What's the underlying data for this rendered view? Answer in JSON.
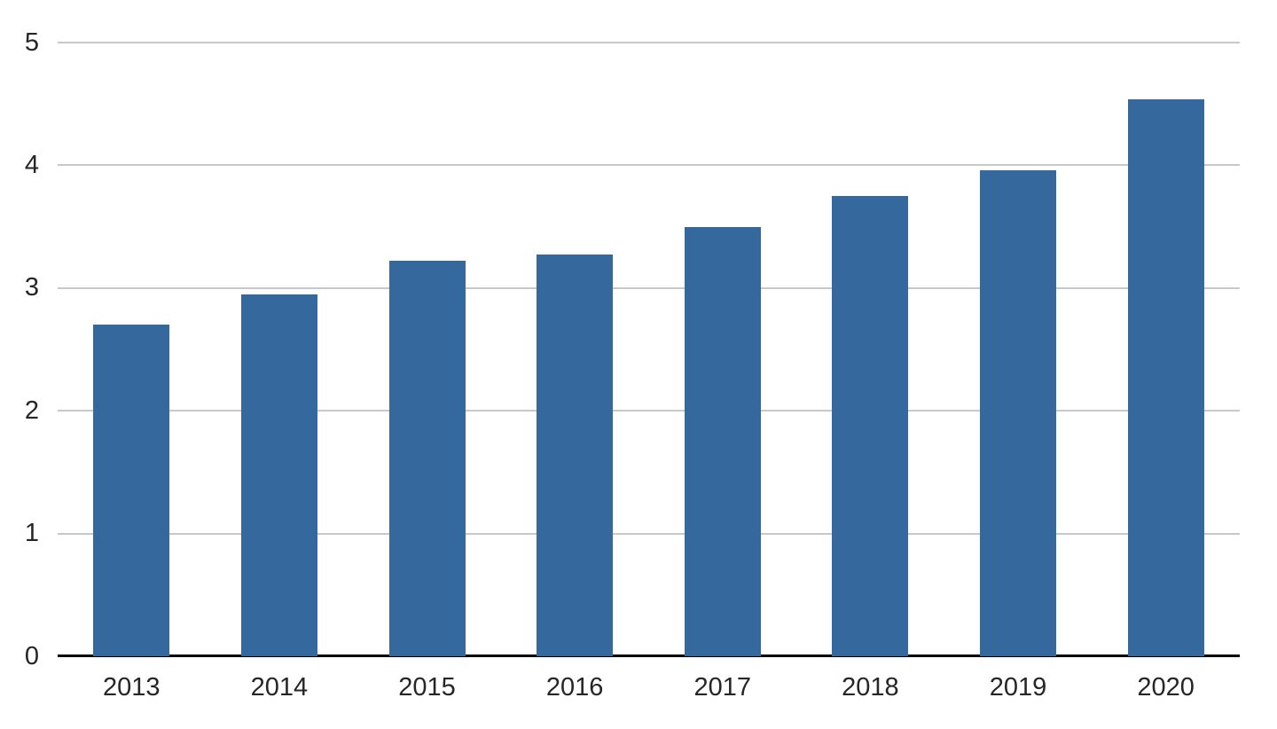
{
  "chart_data": {
    "type": "bar",
    "title": "",
    "xlabel": "",
    "ylabel": "",
    "categories": [
      "2013",
      "2014",
      "2015",
      "2016",
      "2017",
      "2018",
      "2019",
      "2020"
    ],
    "values": [
      2.7,
      2.95,
      3.22,
      3.27,
      3.5,
      3.75,
      3.96,
      4.54
    ],
    "yticks": [
      0,
      1,
      2,
      3,
      4,
      5
    ],
    "ylim": [
      0,
      5
    ],
    "grid": "horizontal-only",
    "legend": "none",
    "colors": {
      "bar": "#35689D",
      "gridline": "#c8c8c8",
      "axis_line": "#000000",
      "tick_text": "#262626",
      "background": "#ffffff"
    }
  }
}
